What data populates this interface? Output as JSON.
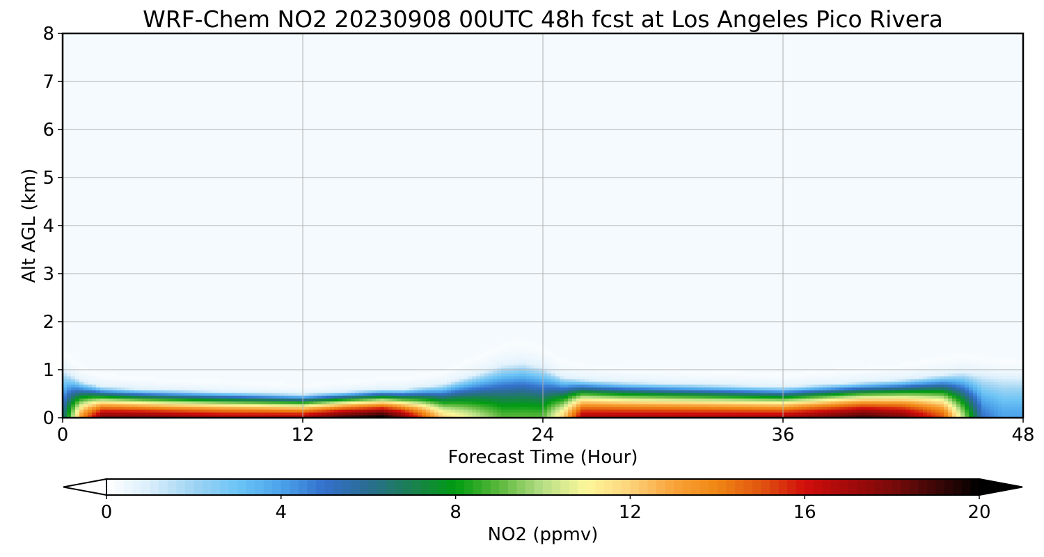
{
  "chart_data": {
    "type": "heatmap",
    "title": "WRF-Chem NO2  20230908 00UTC 48h fcst at Los Angeles Pico Rivera",
    "xlabel": "Forecast Time (Hour)",
    "ylabel": "Alt AGL (km)",
    "xlim": [
      0,
      48
    ],
    "ylim": [
      0,
      8
    ],
    "x_ticks": [
      0,
      12,
      24,
      36,
      48
    ],
    "y_ticks": [
      0,
      1,
      2,
      3,
      4,
      5,
      6,
      7,
      8
    ],
    "grid": true,
    "colorbar": {
      "label": "NO2  (ppmv)",
      "range": [
        0,
        20
      ],
      "ticks": [
        0,
        4,
        8,
        12,
        16,
        20
      ],
      "extend": "both",
      "palette": [
        "#ffffff",
        "#d9eefb",
        "#9fd4f3",
        "#6cc4f5",
        "#4ca3ea",
        "#3470cc",
        "#2a6d91",
        "#1a8050",
        "#019c11",
        "#5cb83d",
        "#b7df86",
        "#fdf79b",
        "#fcd37a",
        "#f9a33a",
        "#f08613",
        "#e05410",
        "#d10e0c",
        "#a50a0a",
        "#7a0a0a",
        "#3d0707",
        "#000000"
      ]
    },
    "field": {
      "description_hours": [
        0,
        1,
        2,
        4,
        8,
        12,
        14,
        16,
        17,
        19,
        21,
        22,
        23,
        24,
        25,
        26,
        28,
        32,
        36,
        38,
        40,
        42,
        44,
        45,
        46,
        47,
        48
      ],
      "plume_top_km": [
        1.0,
        0.75,
        0.65,
        0.6,
        0.55,
        0.5,
        0.55,
        0.6,
        0.6,
        0.7,
        0.95,
        1.1,
        1.15,
        1.05,
        0.85,
        0.8,
        0.75,
        0.7,
        0.65,
        0.7,
        0.75,
        0.8,
        0.9,
        0.95,
        0.9,
        0.85,
        0.85
      ],
      "surface_no2_ppmv": [
        6,
        14,
        18,
        18,
        17,
        17,
        19,
        20,
        18,
        12,
        10,
        9,
        9,
        9,
        12,
        17,
        17,
        17,
        17,
        18,
        19,
        18,
        15,
        10,
        5,
        4,
        4
      ]
    }
  }
}
